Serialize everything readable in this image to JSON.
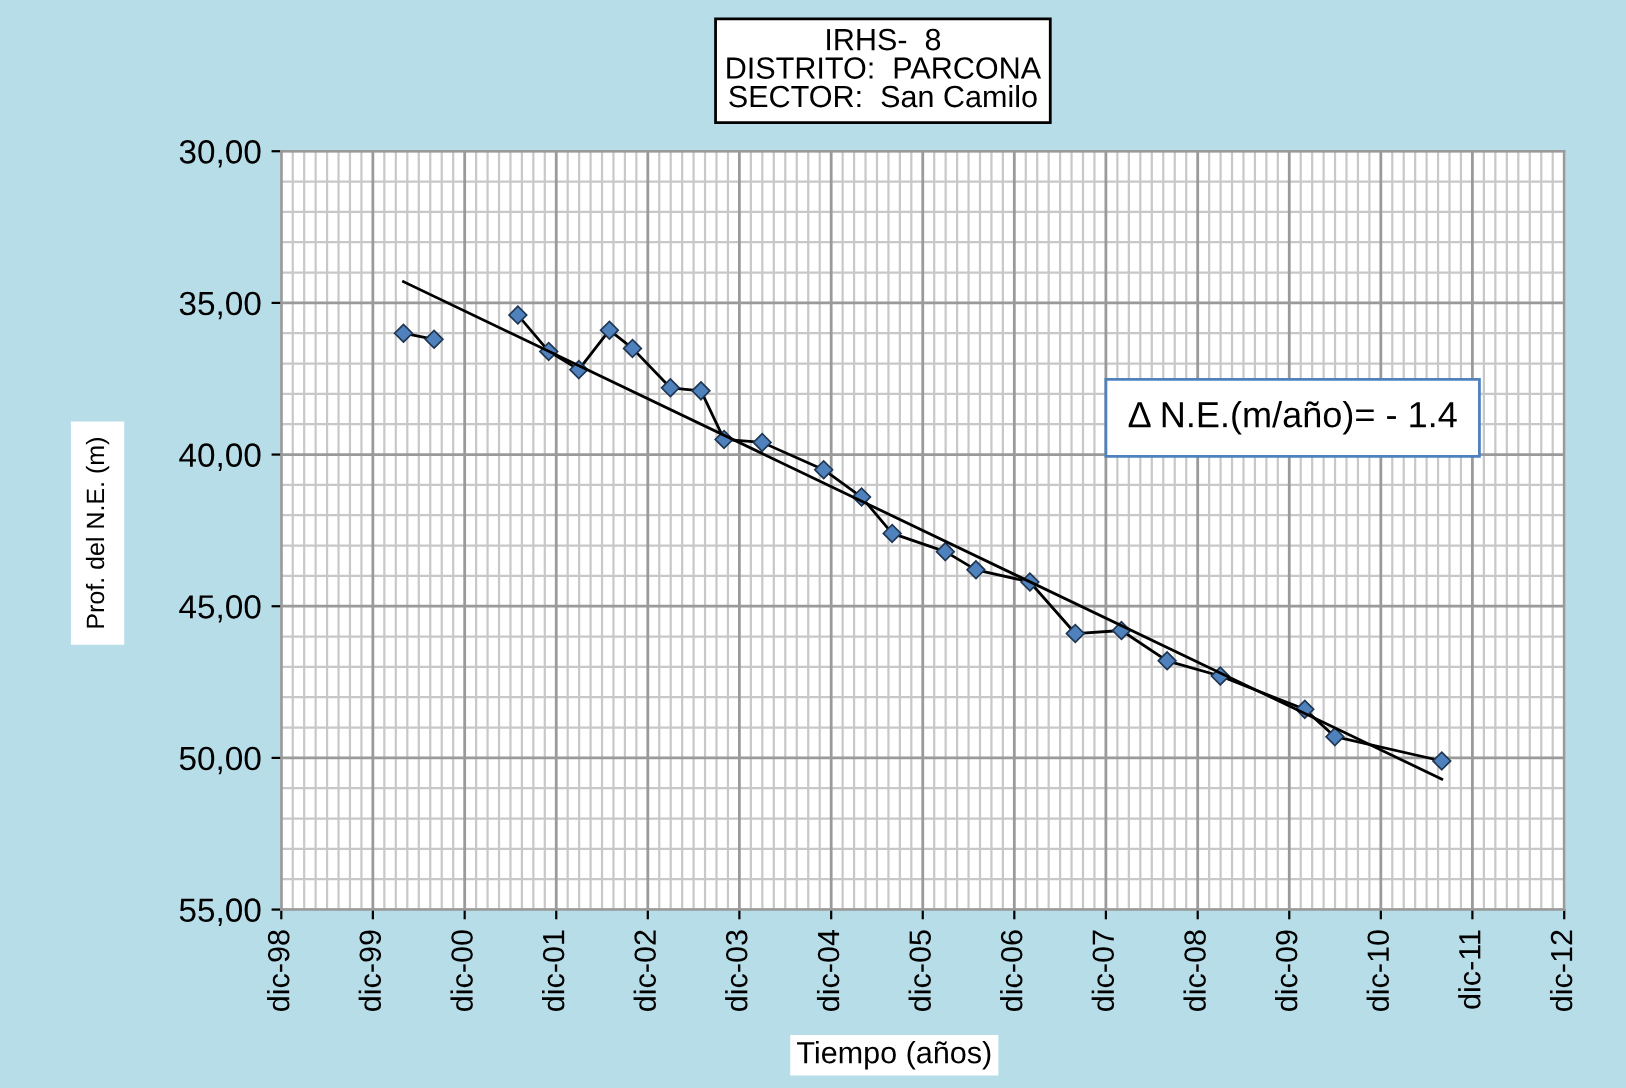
{
  "chart_data": {
    "type": "line",
    "title": "IRHS-  8\nDISTRITO:  PARCONA\nSECTOR:  San Camilo",
    "xlabel": "Tiempo (años)",
    "ylabel": "Prof. del N.E. (m)",
    "annotations": [
      "Δ N.E.(m/año)= - 1.4"
    ],
    "series": [
      {
        "color": "#000000",
        "marker": "diamond",
        "x": [
          "2000-04",
          "2000-08"
        ],
        "values": [
          36.0,
          36.2
        ]
      },
      {
        "color": "#000000",
        "marker": "diamond",
        "x": [
          "2001-07",
          "2001-11",
          "2002-03",
          "2002-07",
          "2002-10",
          "2003-03",
          "2003-07",
          "2003-10",
          "2004-03",
          "2004-11",
          "2005-04",
          "2005-08",
          "2006-03",
          "2006-07",
          "2007-02",
          "2007-08",
          "2008-02",
          "2008-08",
          "2009-03",
          "2010-02",
          "2010-06",
          "2011-08"
        ],
        "values": [
          35.4,
          36.6,
          37.2,
          35.9,
          36.5,
          37.8,
          37.9,
          39.5,
          39.6,
          40.5,
          41.4,
          42.6,
          43.2,
          43.8,
          44.2,
          45.9,
          45.8,
          46.8,
          47.3,
          48.4,
          49.3,
          50.1
        ]
      },
      {
        "color": "#000000",
        "marker": "none",
        "x": [
          "2000-04",
          "2011-08"
        ],
        "values": [
          34.3,
          50.7
        ]
      }
    ],
    "xlim": [
      "1998-12",
      "2012-12"
    ],
    "xticks": [
      {
        "value": "1998-12",
        "label": "dic-98"
      },
      {
        "value": "1999-12",
        "label": "dic-99"
      },
      {
        "value": "2000-12",
        "label": "dic-00"
      },
      {
        "value": "2001-12",
        "label": "dic-01"
      },
      {
        "value": "2002-12",
        "label": "dic-02"
      },
      {
        "value": "2003-12",
        "label": "dic-03"
      },
      {
        "value": "2004-12",
        "label": "dic-04"
      },
      {
        "value": "2005-12",
        "label": "dic-05"
      },
      {
        "value": "2006-12",
        "label": "dic-06"
      },
      {
        "value": "2007-12",
        "label": "dic-07"
      },
      {
        "value": "2008-12",
        "label": "dic-08"
      },
      {
        "value": "2009-12",
        "label": "dic-09"
      },
      {
        "value": "2010-12",
        "label": "dic-10"
      },
      {
        "value": "2011-12",
        "label": "dic-11"
      },
      {
        "value": "2012-12",
        "label": "dic-12"
      }
    ],
    "ylim": [
      55,
      30
    ],
    "yticks": [
      {
        "value": 30,
        "label": "30,00"
      },
      {
        "value": 35,
        "label": "35,00"
      },
      {
        "value": 40,
        "label": "40,00"
      },
      {
        "value": 45,
        "label": "45,00"
      },
      {
        "value": 50,
        "label": "50,00"
      },
      {
        "value": 55,
        "label": "55,00"
      }
    ],
    "grid": true,
    "legend": false,
    "line_style": "solid"
  }
}
